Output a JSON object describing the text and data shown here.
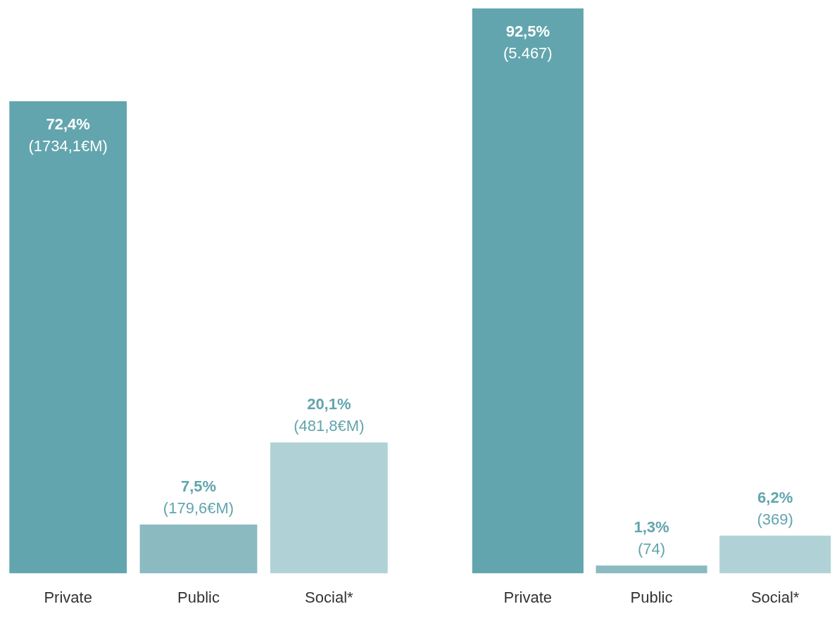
{
  "chart_data": [
    {
      "type": "bar",
      "categories": [
        "Private",
        "Public",
        "Social*"
      ],
      "values": [
        72.4,
        7.5,
        20.1
      ],
      "colors": [
        "#62a5ae",
        "#8bbac1",
        "#b0d2d6"
      ],
      "tick_labels": "x",
      "grid": false,
      "legend": false,
      "value_labels": [
        "72,4%\n(1734,1€M)",
        "7,5%\n(179,6€M)",
        "20,1%\n(481,8€M)"
      ]
    },
    {
      "type": "bar",
      "categories": [
        "Private",
        "Public",
        "Social*"
      ],
      "values": [
        92.5,
        1.3,
        6.2
      ],
      "colors": [
        "#62a5ae",
        "#8bbac1",
        "#b0d2d6"
      ],
      "tick_labels": "x",
      "grid": false,
      "legend": false,
      "value_labels": [
        "92,5%\n(5.467)",
        "1,3%\n(74)",
        "6,2%\n(369)"
      ]
    }
  ]
}
